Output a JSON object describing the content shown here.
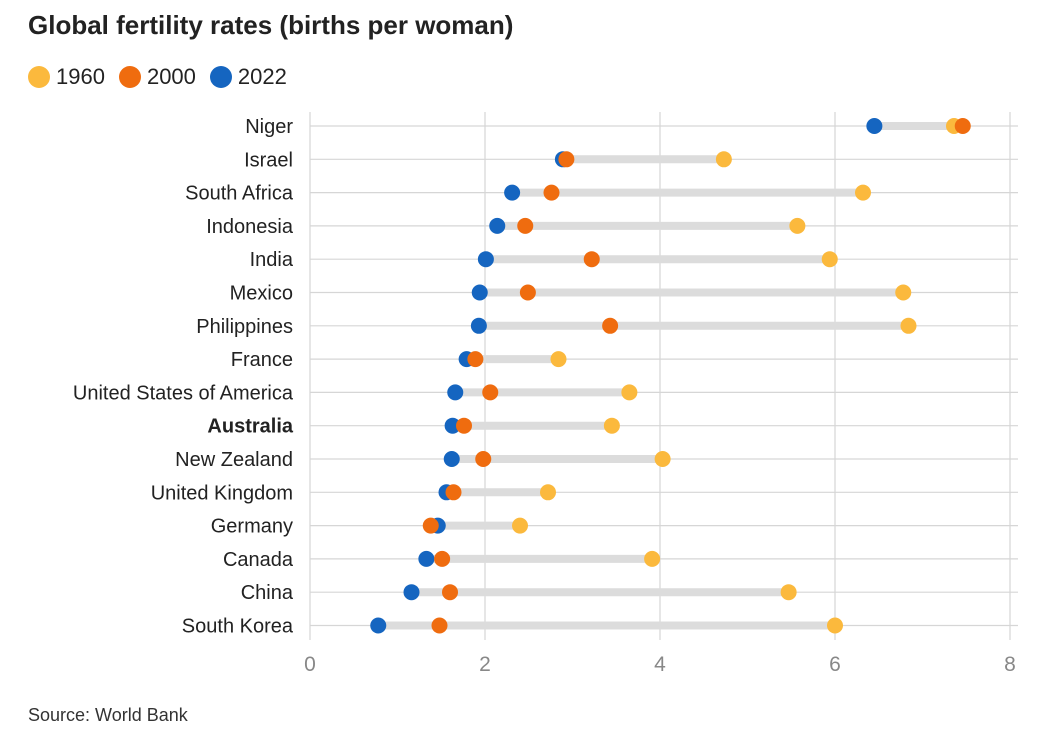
{
  "title": "Global fertility rates (births per woman)",
  "source": "Source: World Bank",
  "colors": {
    "y1960": "#fbb93d",
    "y2000": "#ef6c0f",
    "y2022": "#1565c0",
    "range": "#dcdcdc",
    "grid": "#d6d6d6"
  },
  "chart_data": {
    "type": "scatter",
    "title": "Global fertility rates (births per woman)",
    "xlabel": "",
    "ylabel": "",
    "xlim": [
      0,
      8
    ],
    "xticks": [
      "0",
      "2",
      "4",
      "6",
      "8"
    ],
    "grid": true,
    "legend_position": "top-left",
    "categories": [
      "Niger",
      "Israel",
      "South Africa",
      "Indonesia",
      "India",
      "Mexico",
      "Philippines",
      "France",
      "United States of America",
      "Australia",
      "New Zealand",
      "United Kingdom",
      "Germany",
      "Canada",
      "China",
      "South Korea"
    ],
    "highlight": "Australia",
    "series": [
      {
        "name": "1960",
        "color": "#fbb93d",
        "values": [
          7.36,
          4.73,
          6.32,
          5.57,
          5.94,
          6.78,
          6.84,
          2.84,
          3.65,
          3.45,
          4.03,
          2.72,
          2.4,
          3.91,
          5.47,
          6.0
        ]
      },
      {
        "name": "2000",
        "color": "#ef6c0f",
        "values": [
          7.46,
          2.93,
          2.76,
          2.46,
          3.22,
          2.49,
          3.43,
          1.89,
          2.06,
          1.76,
          1.98,
          1.64,
          1.38,
          1.51,
          1.6,
          1.48
        ]
      },
      {
        "name": "2022",
        "color": "#1565c0",
        "values": [
          6.45,
          2.89,
          2.31,
          2.14,
          2.01,
          1.94,
          1.93,
          1.79,
          1.66,
          1.63,
          1.62,
          1.56,
          1.46,
          1.33,
          1.16,
          0.78
        ]
      }
    ]
  }
}
